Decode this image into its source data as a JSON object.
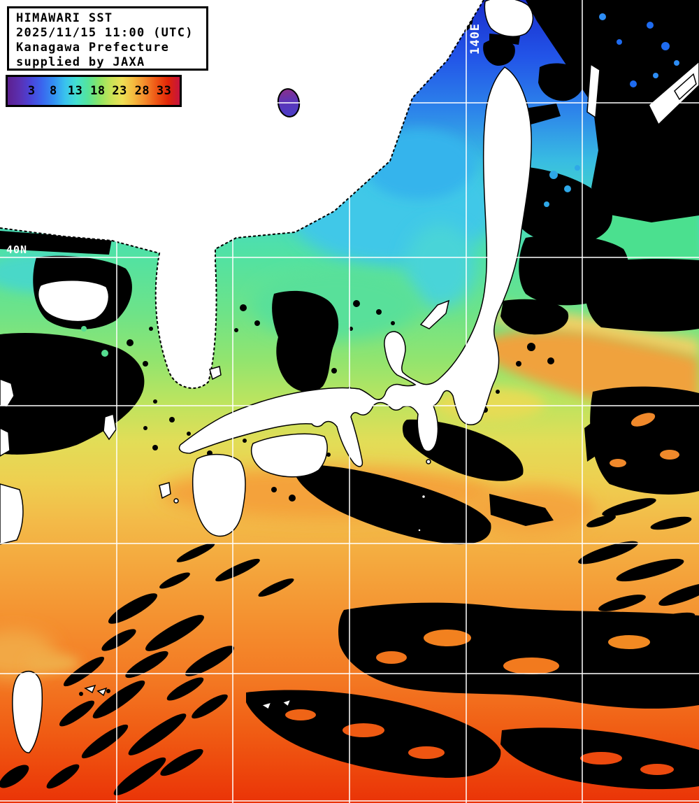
{
  "header": {
    "line1": "HIMAWARI SST",
    "line2": "2025/11/15 11:00 (UTC)",
    "line3": "Kanagawa Prefecture",
    "line4": "supplied by JAXA"
  },
  "colorbar": {
    "labels": [
      "3",
      "8",
      "13",
      "18",
      "23",
      "28",
      "33"
    ],
    "tick_positions_pct": [
      13.9,
      26.6,
      39.3,
      52.4,
      65.1,
      78.2,
      90.9
    ],
    "gradient": [
      "#5c2090",
      "#5b2fb0",
      "#4a44d8",
      "#3a66ee",
      "#338ff2",
      "#39c2ee",
      "#43e0d0",
      "#55e49a",
      "#8ce465",
      "#c6e356",
      "#eedf55",
      "#f5b93e",
      "#f4892b",
      "#ee5414",
      "#e02508",
      "#c61440"
    ]
  },
  "map": {
    "meridian_label": "140E",
    "parallel_label": "40N",
    "grid_color": "#ffffff",
    "gridlines": {
      "vertical_x": [
        167,
        333,
        500,
        667,
        833
      ],
      "horizontal_y": [
        147,
        368,
        580,
        777,
        963,
        1145
      ]
    },
    "legend_colors": {
      "cold_lake_purple": "#5c35b8",
      "deep_blue": "#1a2ecc",
      "cyan": "#3fc8e8",
      "green": "#55e39a",
      "yellow_green": "#cbe45c",
      "yellow": "#e9da55",
      "orange": "#f4a03a",
      "deep_orange": "#f2701e",
      "red": "#ea3307",
      "cloud_mask": "#000000",
      "land_no_data": "#ffffff"
    }
  }
}
